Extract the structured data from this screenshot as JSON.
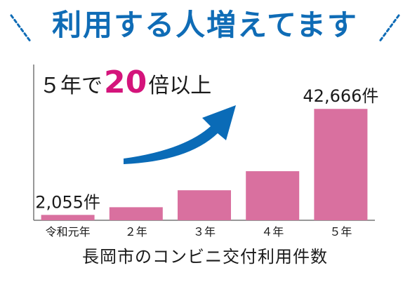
{
  "header": {
    "headline": "利用する人増えてます",
    "subtitle_prefix": "５年で",
    "subtitle_highlight": "20",
    "subtitle_suffix": "倍以上",
    "headline_color": "#0f6cb6",
    "highlight_color": "#d4147b"
  },
  "chart_data": {
    "type": "bar",
    "title": "長岡市のコンビニ交付利用件数",
    "categories": [
      "令和元年",
      "２年",
      "３年",
      "４年",
      "５年"
    ],
    "values": [
      2055,
      5000,
      11500,
      18800,
      42666
    ],
    "unit": "件",
    "data_labels": [
      "2,055件",
      "",
      "",
      "",
      "42,666件"
    ],
    "ylim": [
      0,
      43000
    ],
    "bar_color": "#d9709f",
    "arrow_color": "#0a6bb7",
    "grid": false,
    "legend": "none"
  }
}
